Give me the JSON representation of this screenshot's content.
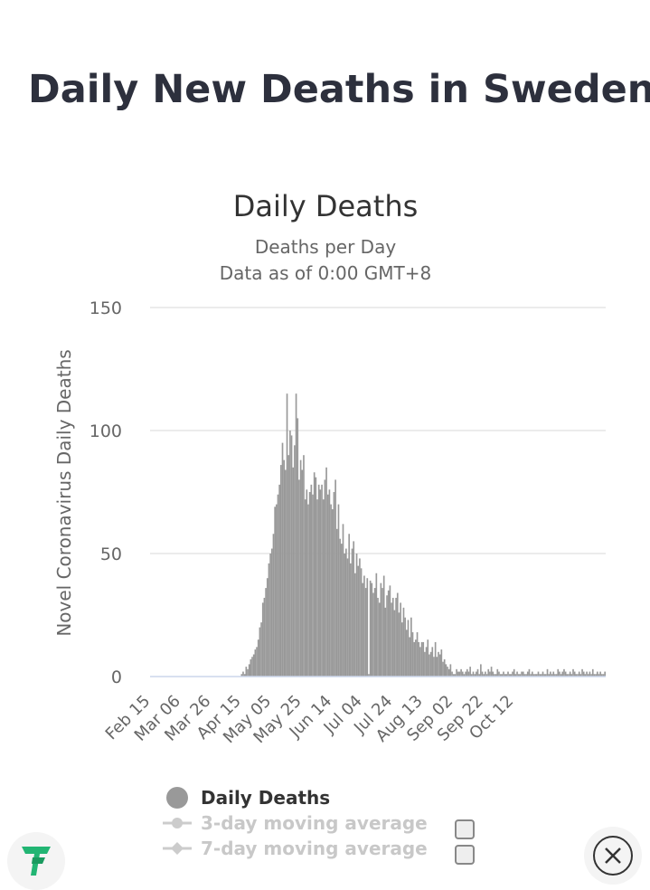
{
  "page": {
    "title": "Daily New Deaths in Sweden"
  },
  "chart_data": {
    "type": "bar",
    "title": "Daily Deaths",
    "subtitle_lines": [
      "Deaths per Day",
      "Data as of 0:00 GMT+8"
    ],
    "ylabel": "Novel Coronavirus Daily Deaths",
    "xlabel": "",
    "ylim": [
      0,
      150
    ],
    "yticks": [
      0,
      50,
      100,
      150
    ],
    "grid": true,
    "x_start": "Feb 15",
    "x_tick_labels": [
      "Feb 15",
      "Mar 06",
      "Mar 26",
      "Apr 15",
      "May 05",
      "May 25",
      "Jun 14",
      "Jul 04",
      "Jul 24",
      "Aug 13",
      "Sep 02",
      "Sep 22",
      "Oct 12"
    ],
    "series": [
      {
        "name": "Daily Deaths",
        "color": "#999999",
        "values": [
          0,
          0,
          0,
          0,
          0,
          0,
          0,
          0,
          0,
          0,
          0,
          0,
          0,
          0,
          0,
          0,
          0,
          0,
          0,
          0,
          0,
          0,
          0,
          0,
          0,
          0,
          0,
          0,
          0,
          0,
          0,
          0,
          0,
          0,
          0,
          0,
          0,
          0,
          0,
          0,
          0,
          0,
          0,
          0,
          0,
          0,
          0,
          0,
          0,
          0,
          0,
          0,
          0,
          0,
          0,
          0,
          0,
          0,
          0,
          0,
          1,
          2,
          1,
          4,
          3,
          5,
          7,
          8,
          9,
          11,
          12,
          15,
          20,
          22,
          30,
          32,
          36,
          40,
          46,
          50,
          52,
          58,
          69,
          70,
          74,
          78,
          86,
          95,
          88,
          84,
          115,
          90,
          100,
          98,
          85,
          94,
          115,
          105,
          80,
          88,
          84,
          90,
          72,
          76,
          70,
          75,
          78,
          74,
          83,
          81,
          72,
          78,
          76,
          78,
          72,
          80,
          85,
          74,
          76,
          70,
          68,
          75,
          80,
          60,
          70,
          56,
          54,
          62,
          50,
          52,
          48,
          58,
          46,
          52,
          55,
          42,
          50,
          45,
          48,
          44,
          38,
          41,
          36,
          40,
          1,
          39,
          38,
          34,
          36,
          42,
          32,
          30,
          38,
          36,
          41,
          28,
          33,
          35,
          37,
          30,
          32,
          27,
          32,
          34,
          26,
          30,
          22,
          28,
          24,
          19,
          23,
          16,
          24,
          18,
          14,
          15,
          18,
          14,
          12,
          14,
          14,
          10,
          12,
          15,
          9,
          10,
          12,
          8,
          14,
          8,
          10,
          9,
          11,
          6,
          7,
          5,
          4,
          3,
          5,
          2,
          1,
          1,
          3,
          2,
          2,
          3,
          2,
          1,
          2,
          3,
          2,
          4,
          1,
          2,
          1,
          2,
          3,
          1,
          5,
          2,
          1,
          2,
          1,
          3,
          2,
          4,
          2,
          1,
          1,
          3,
          2,
          1,
          1,
          2,
          1,
          1,
          2,
          1,
          1,
          2,
          3,
          1,
          2,
          1,
          1,
          2,
          2,
          1,
          1,
          2,
          3,
          1,
          2,
          1,
          1,
          1,
          2,
          1,
          1,
          2,
          1,
          1,
          3,
          1,
          2,
          1,
          2,
          1,
          1,
          3,
          2,
          1,
          2,
          3,
          2,
          1,
          1,
          2,
          1,
          3,
          2,
          1,
          1,
          2,
          1,
          3,
          2,
          1,
          2,
          1,
          2,
          1,
          3,
          1,
          1,
          2,
          1,
          2,
          1,
          1,
          2
        ]
      },
      {
        "name": "3-day moving average",
        "color": "#cccccc",
        "visible": false
      },
      {
        "name": "7-day moving average",
        "color": "#cccccc",
        "visible": false
      }
    ]
  }
}
